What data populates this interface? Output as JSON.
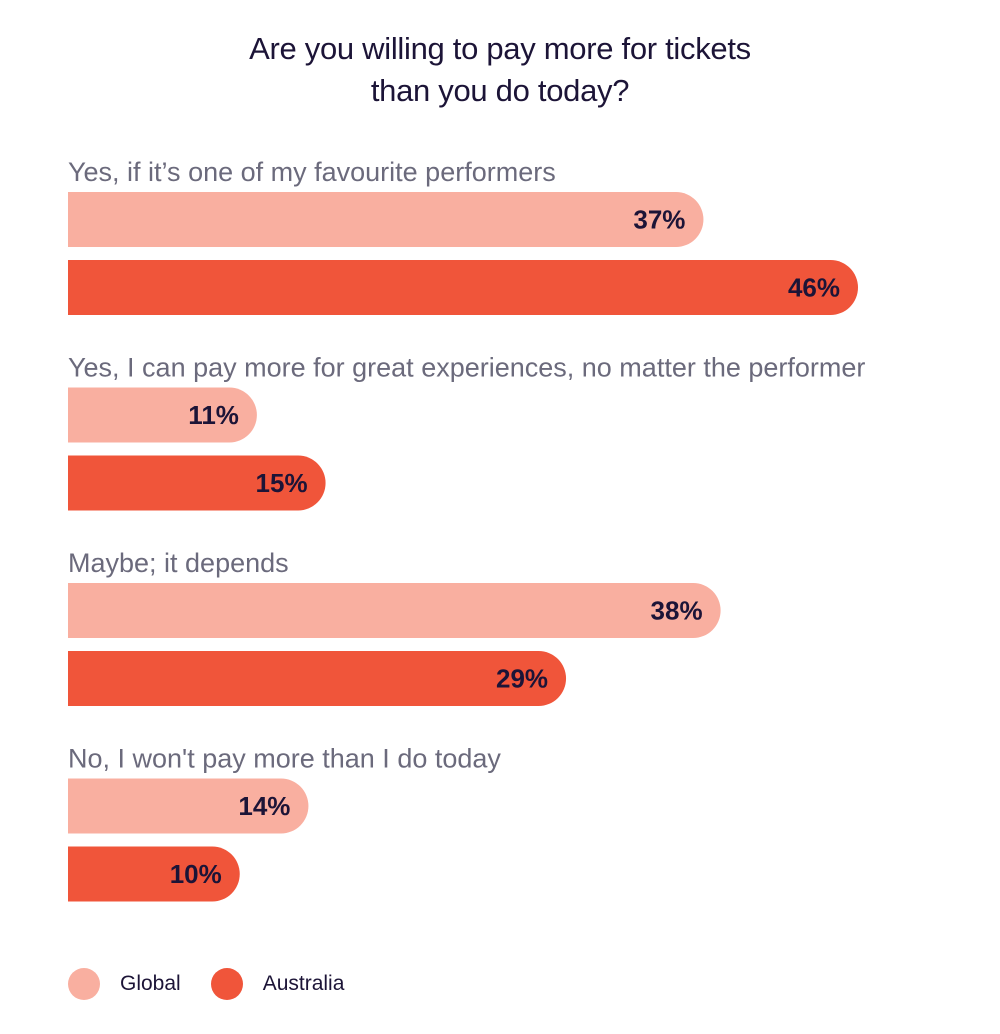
{
  "chart_data": {
    "type": "bar",
    "orientation": "horizontal",
    "title_lines": [
      "Are you willing to pay more for tickets",
      "than you do today?"
    ],
    "categories": [
      "Yes, if it’s one of my favourite performers",
      "Yes, I can pay more for great experiences, no matter the performer",
      "Maybe; it depends",
      "No, I won't pay more than I do today"
    ],
    "series": [
      {
        "name": "Global",
        "color": "#f9afa0",
        "values": [
          37,
          11,
          38,
          14
        ]
      },
      {
        "name": "Australia",
        "color": "#f0553a",
        "values": [
          46,
          15,
          29,
          10
        ]
      }
    ],
    "value_suffix": "%",
    "xlim": [
      0,
      46
    ],
    "grid": false,
    "legend": "bottom-left"
  }
}
